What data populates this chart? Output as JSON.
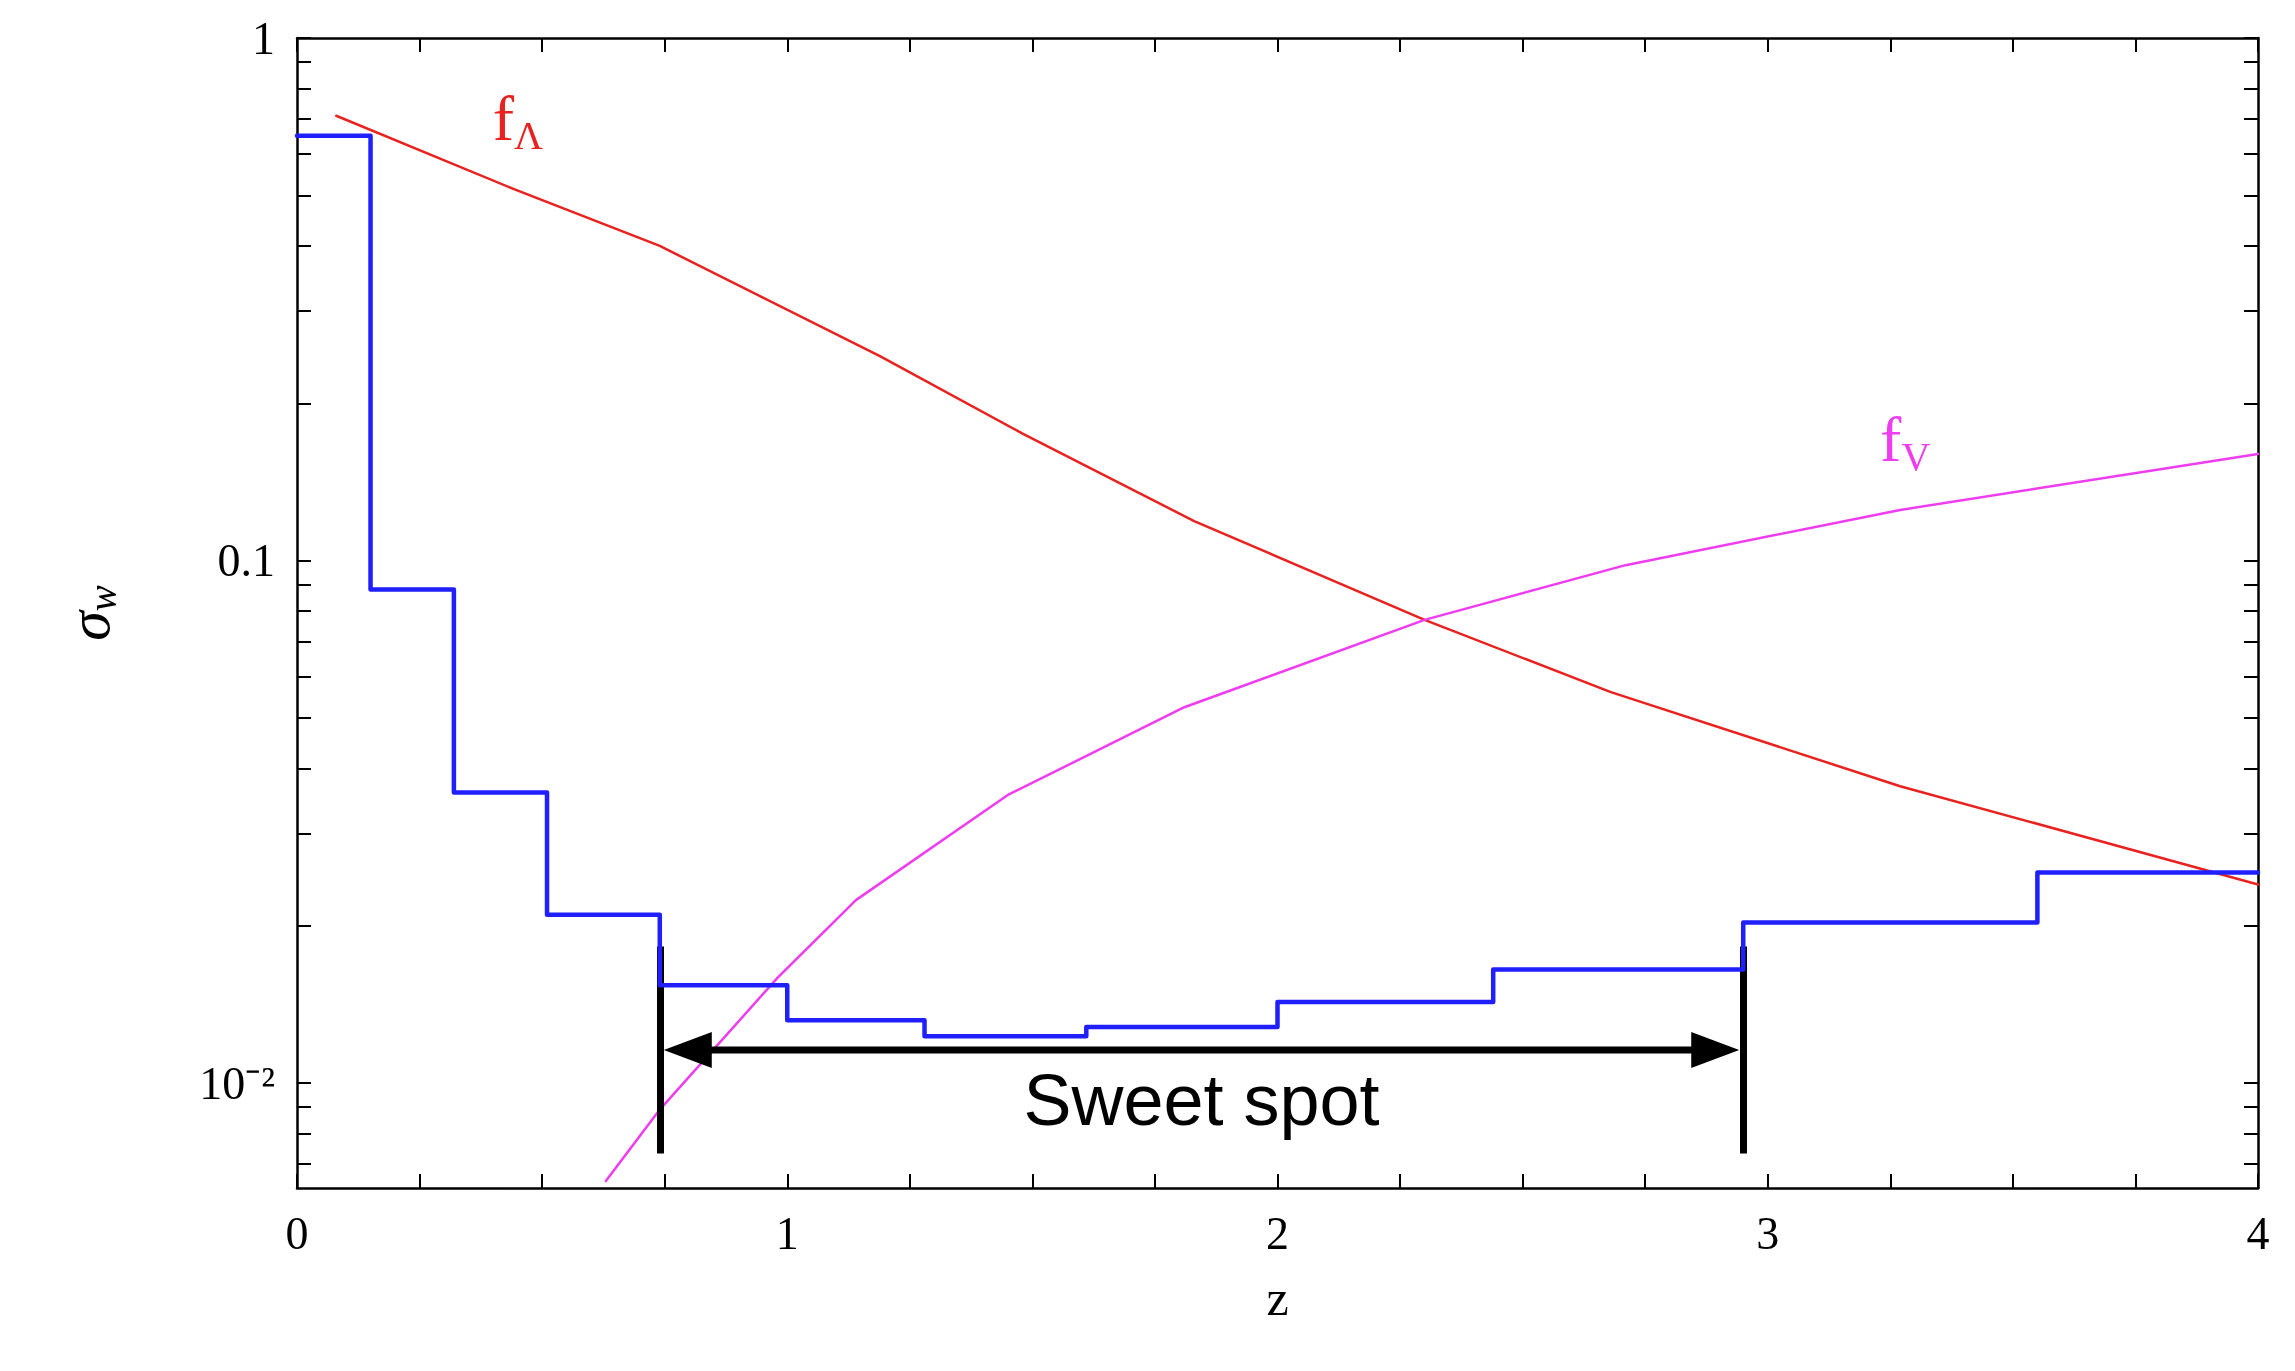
{
  "chart_data": {
    "type": "line",
    "xlabel": "z",
    "ylabel": "σ$_{w}$",
    "series": [
      {
        "type": "step",
        "color": "#1f1fff",
        "x": [
          0,
          0.15,
          0.32,
          0.51,
          0.74,
          1.0,
          1.28,
          1.61,
          2.0,
          2.44,
          2.95,
          3.55,
          4.0
        ],
        "values": [
          0.65,
          0.088,
          0.036,
          0.021,
          0.0154,
          0.0132,
          0.0123,
          0.0128,
          0.0143,
          0.0165,
          0.0203,
          0.0253,
          0.0253
        ]
      },
      {
        "name": "f$_{Λ}$",
        "color": "#e8231f",
        "x": [
          0.08,
          0.44,
          0.74,
          1.19,
          1.48,
          1.83,
          2.3,
          2.68,
          3.27,
          4.0
        ],
        "values": [
          0.71,
          0.515,
          0.4,
          0.246,
          0.175,
          0.119,
          0.077,
          0.056,
          0.037,
          0.024
        ]
      },
      {
        "name": "f$_{V}$",
        "color": "#f03cf0",
        "x": [
          0.63,
          0.74,
          0.98,
          1.14,
          1.45,
          1.81,
          2.3,
          2.71,
          3.27,
          4.0
        ],
        "values": [
          0.0065,
          0.0089,
          0.0159,
          0.0224,
          0.0356,
          0.0524,
          0.077,
          0.098,
          0.125,
          0.16
        ]
      }
    ],
    "annotations": [
      "Sweet spot"
    ],
    "ref_lines": [
      {
        "axis": "x",
        "value": 0.74,
        "label": null,
        "color": "#000000"
      },
      {
        "axis": "x",
        "value": 2.95,
        "label": null,
        "color": "#000000"
      }
    ],
    "xlim": [
      0,
      4
    ],
    "xticks": [
      0,
      {
        "value": 0.25,
        "label": null
      },
      {
        "value": 0.5,
        "label": null
      },
      {
        "value": 0.75,
        "label": null
      },
      1,
      {
        "value": 1.25,
        "label": null
      },
      {
        "value": 1.5,
        "label": null
      },
      {
        "value": 1.75,
        "label": null
      },
      2,
      {
        "value": 2.25,
        "label": null
      },
      {
        "value": 2.5,
        "label": null
      },
      {
        "value": 2.75,
        "label": null
      },
      3,
      {
        "value": 3.25,
        "label": null
      },
      {
        "value": 3.5,
        "label": null
      },
      {
        "value": 3.75,
        "label": null
      },
      4
    ],
    "ylim": [
      0.0063,
      1
    ],
    "yticks": [
      {
        "value": 0.007,
        "label": null
      },
      {
        "value": 0.008,
        "label": null
      },
      {
        "value": 0.009,
        "label": null
      },
      {
        "value": 0.01,
        "label": "10⁻²"
      },
      {
        "value": 0.02,
        "label": null
      },
      {
        "value": 0.03,
        "label": null
      },
      {
        "value": 0.04,
        "label": null
      },
      {
        "value": 0.05,
        "label": null
      },
      {
        "value": 0.06,
        "label": null
      },
      {
        "value": 0.07,
        "label": null
      },
      {
        "value": 0.08,
        "label": null
      },
      {
        "value": 0.09,
        "label": null
      },
      0.1,
      {
        "value": 0.2,
        "label": null
      },
      {
        "value": 0.3,
        "label": null
      },
      {
        "value": 0.4,
        "label": null
      },
      {
        "value": 0.5,
        "label": null
      },
      {
        "value": 0.6,
        "label": null
      },
      {
        "value": 0.7,
        "label": null
      },
      {
        "value": 0.8,
        "label": null
      },
      {
        "value": 0.9,
        "label": null
      },
      1
    ],
    "log": "y",
    "grid": false,
    "marker": "none"
  }
}
